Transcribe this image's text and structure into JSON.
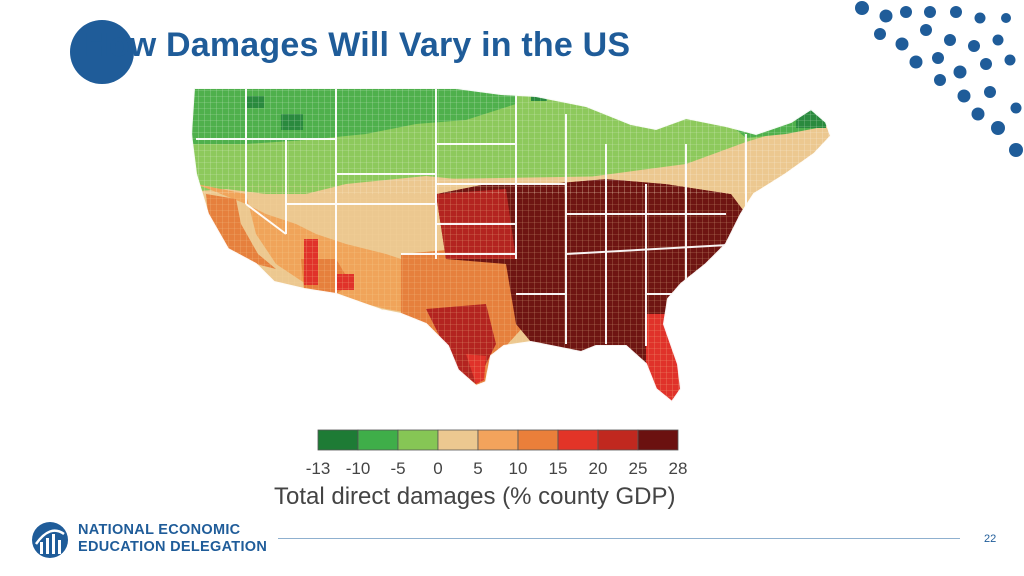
{
  "slide": {
    "title": "How Damages Will Vary in the US",
    "page_number": "22"
  },
  "map": {
    "region": "Contiguous United States (counties)",
    "colors": {
      "green_dark": "#2a8a3e",
      "green": "#4fb04c",
      "green_light": "#8dc95c",
      "tan": "#edc98f",
      "orange_light": "#f0a45a",
      "orange": "#e6803d",
      "red": "#e0322a",
      "dark_red": "#b32420",
      "darkest": "#6e1512",
      "border": "#ffffff"
    }
  },
  "legend": {
    "ticks": [
      "-13",
      "-10",
      "-5",
      "0",
      "5",
      "10",
      "15",
      "20",
      "25",
      "28"
    ],
    "colors": [
      "#1e7b35",
      "#3fae49",
      "#86c655",
      "#ecc890",
      "#f3a35c",
      "#ea7f3a",
      "#e23427",
      "#c0281f",
      "#6b1110"
    ],
    "caption": "Total direct damages (% county GDP)"
  },
  "logo": {
    "line1": "NATIONAL ECONOMIC",
    "line2": "EDUCATION DELEGATION"
  },
  "theme": {
    "brand_blue": "#1f5c99",
    "dot_blue": "#1f5c99"
  }
}
